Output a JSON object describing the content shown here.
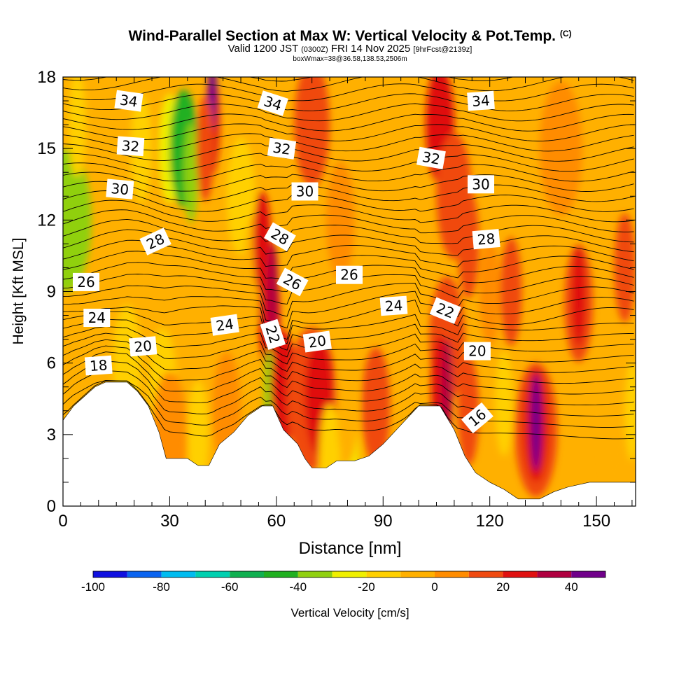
{
  "header": {
    "title": "Wind-Parallel Section at Max W: Vertical Velocity & Pot.Temp.",
    "copyright": "(C)",
    "valid_prefix": "Valid 1200 JST",
    "valid_utc": "(0300Z)",
    "valid_date": "FRI 14 Nov 2025",
    "forecast": "[9hrFcst@2139z]",
    "box_info": "boxWmax=38@36.58,138.53,2506m"
  },
  "colors": {
    "background": "#ffffff",
    "terrain": "#ffffff"
  },
  "chart_data": {
    "type": "heatmap",
    "title": "Wind-Parallel Section at Max W: Vertical Velocity & Pot.Temp.",
    "xlabel": "Distance [nm]",
    "ylabel": "Height [Kft MSL]",
    "xlim": [
      0,
      161
    ],
    "ylim": [
      0,
      18
    ],
    "x_ticks": [
      0,
      30,
      60,
      90,
      120,
      150
    ],
    "y_ticks": [
      0,
      3,
      6,
      9,
      12,
      15,
      18
    ],
    "colorbar": {
      "label": "Vertical Velocity [cm/s]",
      "tick_labels": [
        "-100",
        "-80",
        "-60",
        "-40",
        "-20",
        "0",
        "20",
        "40"
      ],
      "tick_values": [
        -100,
        -80,
        -60,
        -40,
        -20,
        0,
        20,
        40
      ],
      "bins": [
        {
          "min": -100,
          "max": -90,
          "color": "#1010e0"
        },
        {
          "min": -90,
          "max": -80,
          "color": "#0a64f0"
        },
        {
          "min": -80,
          "max": -70,
          "color": "#00bcf0"
        },
        {
          "min": -70,
          "max": -60,
          "color": "#00d0b0"
        },
        {
          "min": -60,
          "max": -50,
          "color": "#10b050"
        },
        {
          "min": -50,
          "max": -40,
          "color": "#20b020"
        },
        {
          "min": -40,
          "max": -30,
          "color": "#90d010"
        },
        {
          "min": -30,
          "max": -20,
          "color": "#f0f000"
        },
        {
          "min": -20,
          "max": -10,
          "color": "#ffd000"
        },
        {
          "min": -10,
          "max": 0,
          "color": "#ffb000"
        },
        {
          "min": 0,
          "max": 10,
          "color": "#ff8c00"
        },
        {
          "min": 10,
          "max": 20,
          "color": "#f04a10"
        },
        {
          "min": 20,
          "max": 30,
          "color": "#e01010"
        },
        {
          "min": 30,
          "max": 40,
          "color": "#b00040"
        },
        {
          "min": 40,
          "max": 50,
          "color": "#70008a"
        }
      ]
    },
    "terrain_profile": [
      [
        0,
        3.6
      ],
      [
        3,
        4.2
      ],
      [
        6,
        4.6
      ],
      [
        9,
        5.0
      ],
      [
        12,
        5.2
      ],
      [
        18,
        5.2
      ],
      [
        21,
        4.8
      ],
      [
        24,
        4.2
      ],
      [
        27,
        3.1
      ],
      [
        29,
        2.0
      ],
      [
        35,
        2.0
      ],
      [
        38,
        1.7
      ],
      [
        41,
        1.7
      ],
      [
        44,
        2.6
      ],
      [
        48,
        3.1
      ],
      [
        52,
        3.8
      ],
      [
        56,
        4.2
      ],
      [
        59,
        4.2
      ],
      [
        62,
        3.2
      ],
      [
        66,
        2.6
      ],
      [
        68,
        2.0
      ],
      [
        70,
        1.6
      ],
      [
        74,
        1.6
      ],
      [
        77,
        1.9
      ],
      [
        82,
        1.9
      ],
      [
        86,
        2.1
      ],
      [
        90,
        2.6
      ],
      [
        95,
        3.4
      ],
      [
        100,
        4.2
      ],
      [
        106,
        4.2
      ],
      [
        110,
        3.2
      ],
      [
        113,
        2.1
      ],
      [
        116,
        1.4
      ],
      [
        120,
        1.0
      ],
      [
        124,
        0.7
      ],
      [
        128,
        0.3
      ],
      [
        134,
        0.3
      ],
      [
        138,
        0.6
      ],
      [
        142,
        0.8
      ],
      [
        148,
        1.0
      ],
      [
        155,
        1.0
      ],
      [
        161,
        1.0
      ]
    ],
    "velocity_cells": [
      {
        "x": 1,
        "y": 12,
        "w": 14,
        "v": -35
      },
      {
        "x": 4,
        "y": 16,
        "w": 5,
        "v": -20
      },
      {
        "x": 22,
        "y": 15,
        "w": 6,
        "v": -15
      },
      {
        "x": 30,
        "y": 15,
        "w": 6,
        "v": -25
      },
      {
        "x": 34,
        "y": 15,
        "w": 8,
        "v": -45
      },
      {
        "x": 36,
        "y": 14,
        "w": 4,
        "v": -40
      },
      {
        "x": 42,
        "y": 16,
        "w": 4,
        "v": 25
      },
      {
        "x": 42,
        "y": 17.5,
        "w": 2,
        "v": 45
      },
      {
        "x": 40,
        "y": 15,
        "w": 5,
        "v": 15
      },
      {
        "x": 18,
        "y": 6,
        "w": 8,
        "v": -18
      },
      {
        "x": 28,
        "y": 5,
        "w": 8,
        "v": -12
      },
      {
        "x": 30,
        "y": 3,
        "w": 10,
        "v": 5
      },
      {
        "x": 38,
        "y": 3,
        "w": 6,
        "v": -15
      },
      {
        "x": 46,
        "y": 4,
        "w": 8,
        "v": 5
      },
      {
        "x": 50,
        "y": 13,
        "w": 8,
        "v": -20
      },
      {
        "x": 54,
        "y": 10,
        "w": 6,
        "v": -10
      },
      {
        "x": 56,
        "y": 11,
        "w": 5,
        "v": 25
      },
      {
        "x": 58,
        "y": 8,
        "w": 6,
        "v": 25
      },
      {
        "x": 59,
        "y": 9,
        "w": 3,
        "v": 32
      },
      {
        "x": 58,
        "y": 4.6,
        "w": 3,
        "v": -40
      },
      {
        "x": 62,
        "y": 5,
        "w": 7,
        "v": 20
      },
      {
        "x": 70,
        "y": 4.5,
        "w": 14,
        "v": 15
      },
      {
        "x": 72,
        "y": 4.6,
        "w": 8,
        "v": 22
      },
      {
        "x": 75,
        "y": 2,
        "w": 6,
        "v": -15
      },
      {
        "x": 81,
        "y": 2.2,
        "w": 4,
        "v": -25
      },
      {
        "x": 80,
        "y": 4,
        "w": 6,
        "v": -5
      },
      {
        "x": 88,
        "y": 4.2,
        "w": 8,
        "v": 12
      },
      {
        "x": 70,
        "y": 16,
        "w": 10,
        "v": 12
      },
      {
        "x": 78,
        "y": 12,
        "w": 8,
        "v": 8
      },
      {
        "x": 106,
        "y": 16,
        "w": 8,
        "v": 20
      },
      {
        "x": 110,
        "y": 13,
        "w": 10,
        "v": 15
      },
      {
        "x": 114,
        "y": 11,
        "w": 6,
        "v": 18
      },
      {
        "x": 108,
        "y": 7,
        "w": 10,
        "v": 12
      },
      {
        "x": 106,
        "y": 5,
        "w": 5,
        "v": 28
      },
      {
        "x": 108,
        "y": 5,
        "w": 3,
        "v": 35
      },
      {
        "x": 114,
        "y": 4,
        "w": 6,
        "v": 12
      },
      {
        "x": 120,
        "y": 9,
        "w": 6,
        "v": 5
      },
      {
        "x": 126,
        "y": 9,
        "w": 6,
        "v": 15
      },
      {
        "x": 133,
        "y": 3.2,
        "w": 12,
        "v": 18
      },
      {
        "x": 133,
        "y": 3.4,
        "w": 7,
        "v": 28
      },
      {
        "x": 133,
        "y": 3.5,
        "w": 3,
        "v": 40
      },
      {
        "x": 124,
        "y": 4.3,
        "w": 5,
        "v": -15
      },
      {
        "x": 145,
        "y": 8.5,
        "w": 8,
        "v": 12
      },
      {
        "x": 145,
        "y": 8.8,
        "w": 4,
        "v": 22
      },
      {
        "x": 140,
        "y": 15,
        "w": 12,
        "v": 5
      },
      {
        "x": 158,
        "y": 10,
        "w": 6,
        "v": 15
      },
      {
        "x": 155,
        "y": 3,
        "w": 7,
        "v": -5
      },
      {
        "x": 160,
        "y": 4,
        "w": 4,
        "v": -18
      }
    ],
    "theta_label_values": [
      "34",
      "32",
      "30",
      "28",
      "26",
      "24",
      "22",
      "20",
      "18",
      "16"
    ],
    "theta_labels": [
      {
        "text": "34",
        "x": 18.5,
        "y": 17.0,
        "rot": 8
      },
      {
        "text": "32",
        "x": 19.0,
        "y": 15.1,
        "rot": 4
      },
      {
        "text": "30",
        "x": 16.0,
        "y": 13.3,
        "rot": 5
      },
      {
        "text": "28",
        "x": 26.0,
        "y": 11.1,
        "rot": -25
      },
      {
        "text": "26",
        "x": 6.5,
        "y": 9.4,
        "rot": 0
      },
      {
        "text": "24",
        "x": 9.5,
        "y": 7.9,
        "rot": 0
      },
      {
        "text": "20",
        "x": 22.5,
        "y": 6.7,
        "rot": -5
      },
      {
        "text": "18",
        "x": 10.0,
        "y": 5.9,
        "rot": -4
      },
      {
        "text": "34",
        "x": 59.0,
        "y": 16.9,
        "rot": 18
      },
      {
        "text": "32",
        "x": 61.5,
        "y": 15.0,
        "rot": 8
      },
      {
        "text": "30",
        "x": 68.0,
        "y": 13.2,
        "rot": 0
      },
      {
        "text": "28",
        "x": 61.0,
        "y": 11.3,
        "rot": 30
      },
      {
        "text": "26",
        "x": 64.5,
        "y": 9.4,
        "rot": 28
      },
      {
        "text": "26",
        "x": 80.5,
        "y": 9.7,
        "rot": 0
      },
      {
        "text": "24",
        "x": 45.5,
        "y": 7.6,
        "rot": -8
      },
      {
        "text": "22",
        "x": 59.0,
        "y": 7.2,
        "rot": 72
      },
      {
        "text": "20",
        "x": 71.5,
        "y": 6.9,
        "rot": -8
      },
      {
        "text": "24",
        "x": 93.0,
        "y": 8.4,
        "rot": -4
      },
      {
        "text": "22",
        "x": 107.5,
        "y": 8.2,
        "rot": 22
      },
      {
        "text": "32",
        "x": 103.5,
        "y": 14.6,
        "rot": 10
      },
      {
        "text": "34",
        "x": 117.5,
        "y": 17.0,
        "rot": -4
      },
      {
        "text": "30",
        "x": 117.5,
        "y": 13.5,
        "rot": 0
      },
      {
        "text": "28",
        "x": 119.0,
        "y": 11.2,
        "rot": -5
      },
      {
        "text": "20",
        "x": 116.5,
        "y": 6.5,
        "rot": 0
      },
      {
        "text": "16",
        "x": 116.5,
        "y": 3.7,
        "rot": -40
      }
    ]
  }
}
